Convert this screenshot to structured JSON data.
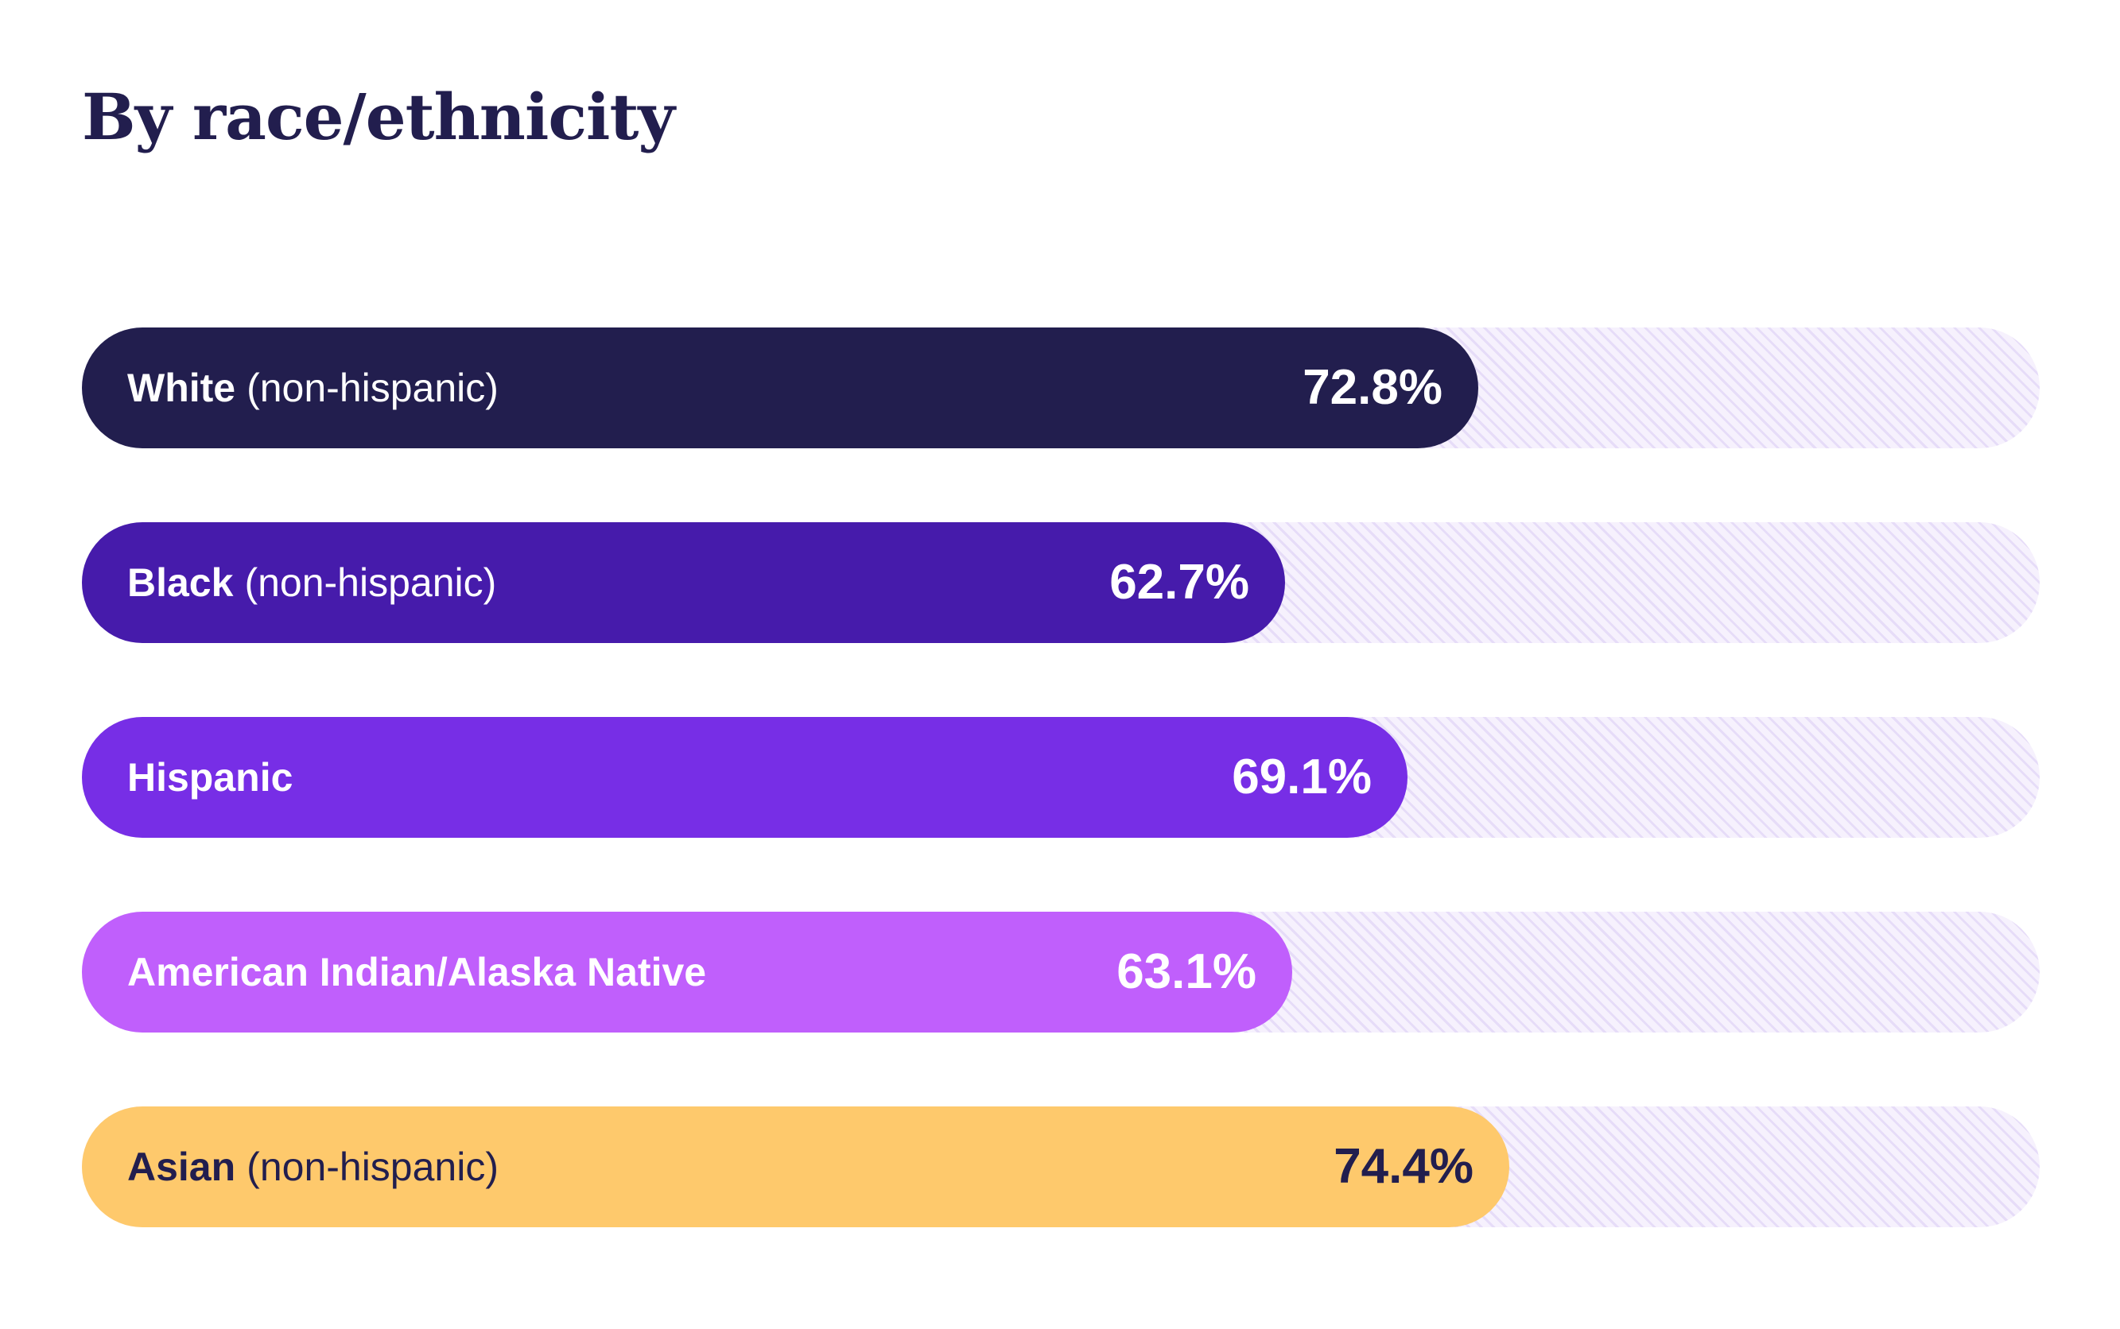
{
  "chart_data": {
    "type": "bar",
    "orientation": "horizontal",
    "title": "By race/ethnicity",
    "xlim": [
      0,
      100
    ],
    "grid": false,
    "unit": "%",
    "categories": [
      "White (non-hispanic)",
      "Black (non-hispanic)",
      "Hispanic",
      "American Indian/Alaska Native",
      "Asian (non-hispanic)"
    ],
    "values": [
      72.8,
      62.7,
      69.1,
      63.1,
      74.4
    ],
    "bars": [
      {
        "label": "White",
        "qualifier": "(non-hispanic)",
        "value": 72.8,
        "value_label": "72.8%",
        "color": "#221e4e",
        "text_color": "#ffffff"
      },
      {
        "label": "Black",
        "qualifier": "(non-hispanic)",
        "value": 62.7,
        "value_label": "62.7%",
        "color": "#461bab",
        "text_color": "#ffffff"
      },
      {
        "label": "Hispanic",
        "qualifier": "",
        "value": 69.1,
        "value_label": "69.1%",
        "color": "#772ee6",
        "text_color": "#ffffff"
      },
      {
        "label": "American Indian/Alaska Native",
        "qualifier": "",
        "value": 63.1,
        "value_label": "63.1%",
        "color": "#c05ffc",
        "text_color": "#ffffff"
      },
      {
        "label": "Asian",
        "qualifier": "(non-hispanic)",
        "value": 74.4,
        "value_label": "74.4%",
        "color": "#fec96c",
        "text_color": "#221e4e"
      }
    ],
    "track_color": "#f6f1fd",
    "title_color": "#221e4e"
  }
}
